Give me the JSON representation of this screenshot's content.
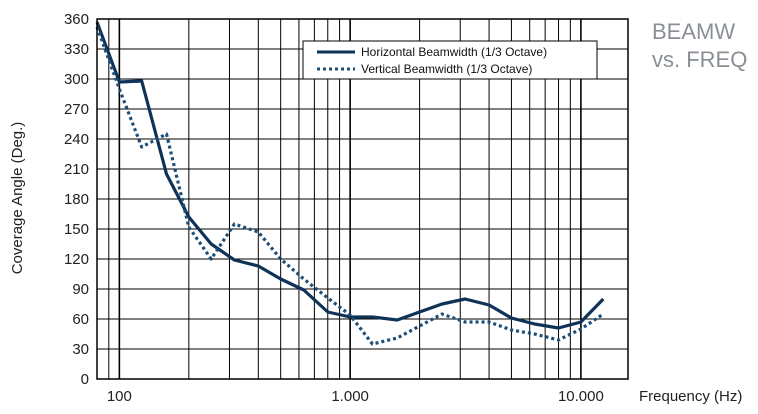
{
  "side_title": {
    "line1": "BEAMW",
    "line2": "vs. FREQ"
  },
  "chart_data": {
    "type": "line",
    "xlabel": "Frequency (Hz)",
    "ylabel": "Coverage Angle (Deg.)",
    "x_scale": "log",
    "xlim": [
      80,
      16000
    ],
    "ylim": [
      0,
      360
    ],
    "grid": true,
    "legend_position": "top-right",
    "x_ticks": [
      {
        "value": 100,
        "label": "100"
      },
      {
        "value": 1000,
        "label": "1.000"
      },
      {
        "value": 10000,
        "label": "10.000"
      }
    ],
    "y_ticks": [
      0,
      30,
      60,
      90,
      120,
      150,
      180,
      210,
      240,
      270,
      300,
      330,
      360
    ],
    "x": [
      80,
      100,
      125,
      160,
      200,
      250,
      315,
      400,
      500,
      630,
      800,
      1000,
      1250,
      1600,
      2000,
      2500,
      3150,
      4000,
      5000,
      6300,
      8000,
      10000,
      12500
    ],
    "series": [
      {
        "name": "Horizontal Beamwidth (1/3 Octave)",
        "style": "solid",
        "color": "#0e3357",
        "values": [
          357,
          297,
          298,
          205,
          162,
          135,
          119,
          113,
          100,
          89,
          67,
          62,
          62,
          59,
          67,
          75,
          80,
          74,
          61,
          55,
          51,
          57,
          80
        ]
      },
      {
        "name": "Vertical Beamwidth (1/3 Octave)",
        "style": "dotted",
        "color": "#1d4e78",
        "values": [
          352,
          290,
          232,
          245,
          152,
          120,
          155,
          147,
          120,
          100,
          81,
          64,
          35,
          41,
          53,
          65,
          57,
          57,
          49,
          45,
          39,
          50,
          65
        ]
      }
    ]
  }
}
